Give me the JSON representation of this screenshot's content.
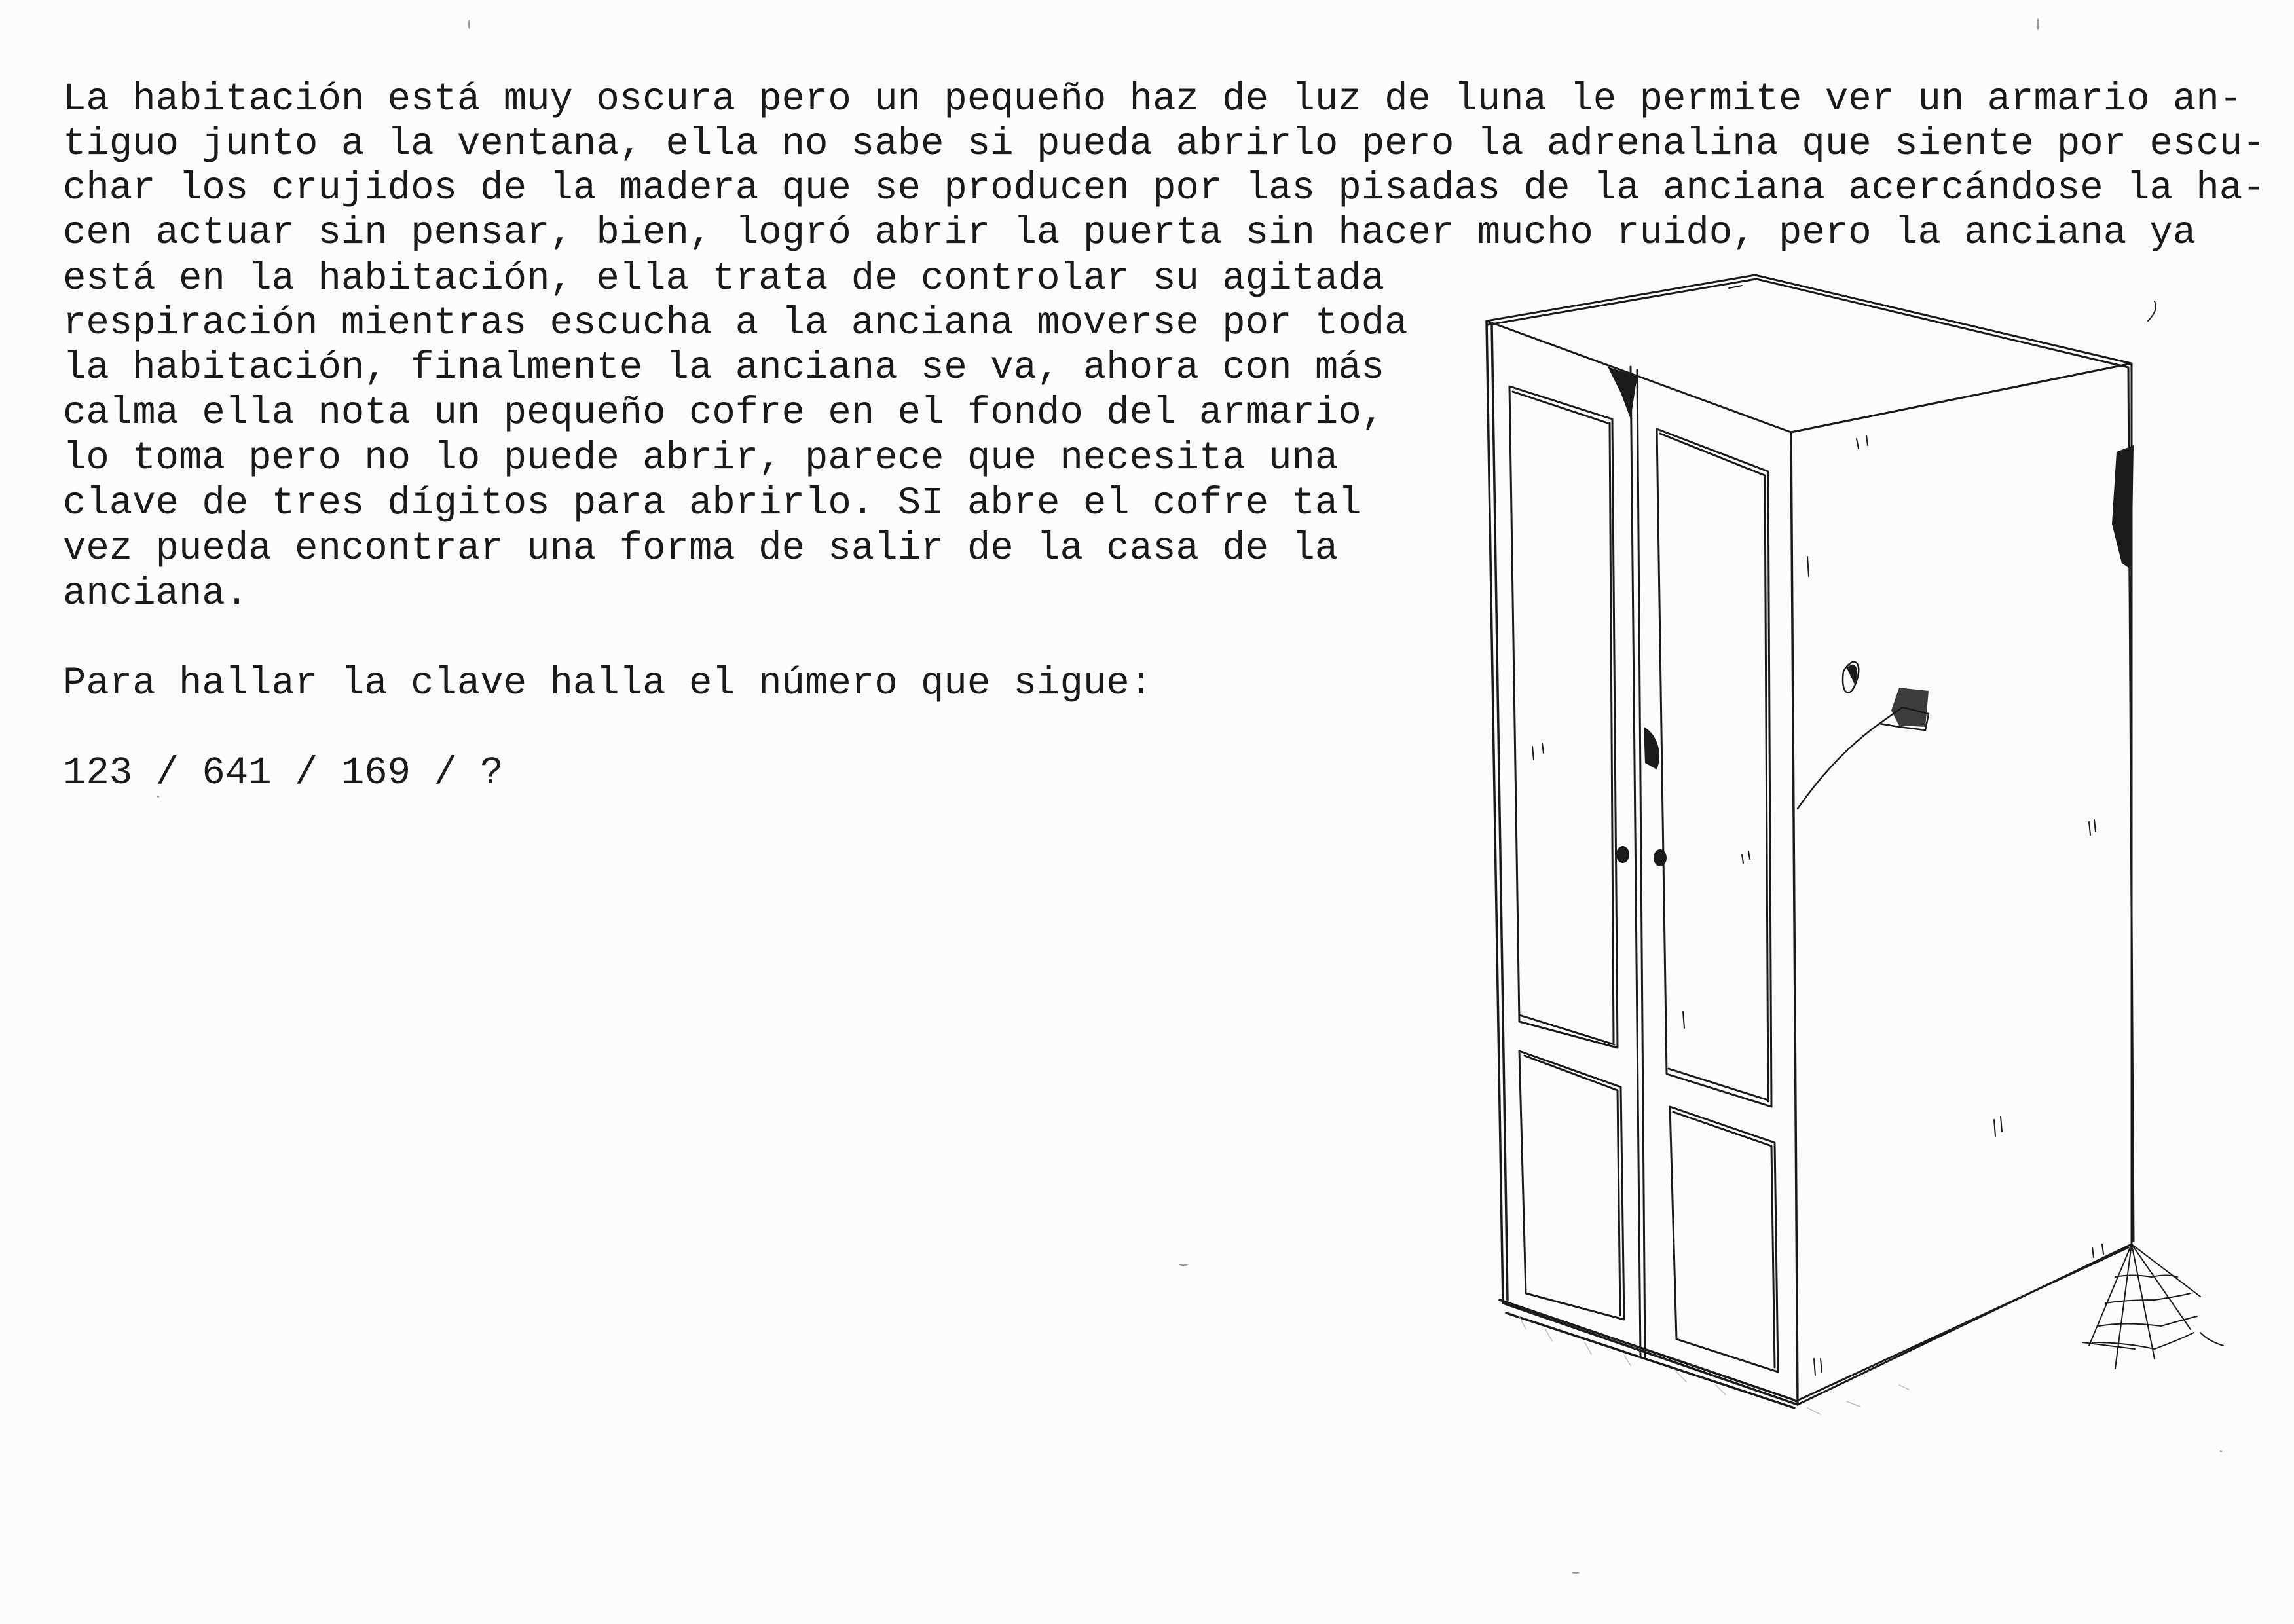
{
  "story": {
    "lines": [
      "La habitación está muy oscura pero un pequeño haz de luz de luna le permite ver un armario an-",
      "tiguo junto a la ventana, ella no sabe si pueda abrirlo pero la adrenalina que siente por escu-",
      "char los crujidos de la madera que se producen por las pisadas de la anciana acercándose la ha-",
      "cen actuar sin pensar, bien, logró abrir la puerta sin hacer mucho ruido, pero la anciana ya",
      "está en la habitación, ella trata de controlar su agitada",
      "respiración mientras escucha a la anciana moverse por toda",
      "la habitación, finalmente la anciana se va, ahora con más",
      "calma ella nota un pequeño cofre en el fondo del armario,",
      "lo toma pero no lo puede abrir, parece que necesita una",
      "clave de tres dígitos para abrirlo. SI abre el cofre tal",
      "vez pueda encontrar una forma de salir de la casa de la",
      "anciana."
    ]
  },
  "puzzle": {
    "prompt": "Para hallar la clave halla el número que sigue:",
    "sequence": "123 / 641 / 169 / ?"
  },
  "illustration": {
    "subject": "wardrobe-drawing",
    "ink_color": "#1a1a1a",
    "paper_color": "#fcfcfa"
  }
}
